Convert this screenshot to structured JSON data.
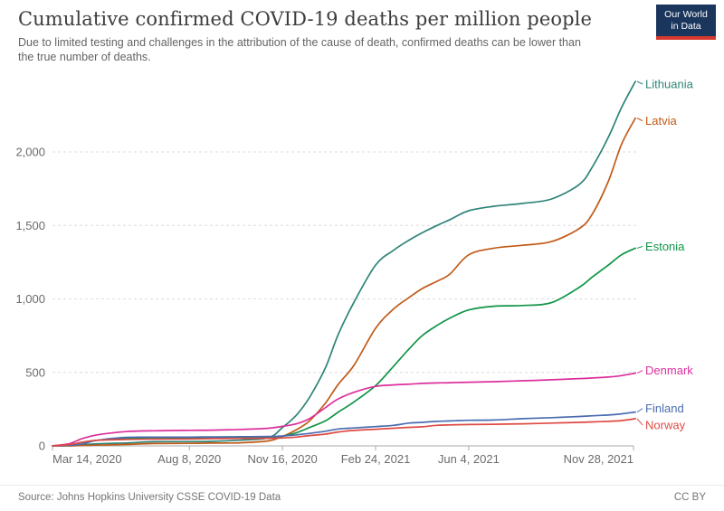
{
  "header": {
    "title": "Cumulative confirmed COVID-19 deaths per million people",
    "subtitle_lines": [
      "Due to limited testing and challenges in the attribution of the cause of death, confirmed deaths can be lower than",
      "the true number of deaths."
    ],
    "logo": {
      "line1": "Our World",
      "line2": "in Data"
    }
  },
  "footer": {
    "source": "Source: Johns Hopkins University CSSE COVID-19 Data",
    "license": "CC BY"
  },
  "chart_data": {
    "type": "line",
    "title": "Cumulative confirmed COVID-19 deaths per million people",
    "xlabel": "",
    "ylabel": "",
    "grid": true,
    "legend_position": "right-end-labels",
    "x_type": "date",
    "x_range": [
      "2020-03-14",
      "2021-11-30"
    ],
    "ylim": [
      0,
      2500
    ],
    "dates": [
      "2020-03-14",
      "2020-04-01",
      "2020-04-15",
      "2020-05-01",
      "2020-06-01",
      "2020-07-01",
      "2020-08-08",
      "2020-09-01",
      "2020-10-01",
      "2020-11-01",
      "2020-11-16",
      "2020-12-01",
      "2020-12-15",
      "2021-01-01",
      "2021-01-15",
      "2021-02-01",
      "2021-02-24",
      "2021-03-15",
      "2021-04-01",
      "2021-04-15",
      "2021-05-01",
      "2021-05-15",
      "2021-06-04",
      "2021-07-01",
      "2021-08-01",
      "2021-09-01",
      "2021-10-01",
      "2021-10-15",
      "2021-11-01",
      "2021-11-15",
      "2021-11-30"
    ],
    "series": [
      {
        "name": "Lithuania",
        "color": "#2e8478",
        "label_dy": 3,
        "values": [
          0,
          3,
          9,
          14,
          20,
          28,
          29,
          31,
          39,
          55,
          125,
          210,
          330,
          530,
          760,
          980,
          1230,
          1330,
          1400,
          1450,
          1500,
          1540,
          1600,
          1630,
          1650,
          1680,
          1780,
          1900,
          2100,
          2300,
          2480
        ]
      },
      {
        "name": "Latvia",
        "color": "#c05a18",
        "label_dy": 3,
        "values": [
          0,
          0,
          3,
          5,
          10,
          16,
          17,
          19,
          21,
          34,
          64,
          110,
          170,
          290,
          420,
          550,
          800,
          930,
          1010,
          1070,
          1120,
          1170,
          1300,
          1345,
          1365,
          1390,
          1480,
          1580,
          1800,
          2050,
          2230
        ]
      },
      {
        "name": "Estonia",
        "color": "#109447",
        "label_dy": -2,
        "values": [
          0,
          9,
          24,
          38,
          50,
          52,
          52,
          53,
          55,
          59,
          66,
          90,
          125,
          170,
          230,
          300,
          410,
          540,
          660,
          750,
          820,
          870,
          925,
          950,
          955,
          975,
          1080,
          1150,
          1230,
          1300,
          1345
        ]
      },
      {
        "name": "Denmark",
        "color": "#dc2f9b",
        "label_dy": -3,
        "values": [
          1,
          15,
          50,
          75,
          97,
          103,
          106,
          107,
          112,
          120,
          133,
          150,
          185,
          260,
          320,
          365,
          405,
          415,
          420,
          425,
          428,
          430,
          433,
          437,
          443,
          450,
          458,
          462,
          468,
          478,
          495
        ]
      },
      {
        "name": "Finland",
        "color": "#4a6cb0",
        "label_dy": -4,
        "values": [
          0,
          3,
          13,
          38,
          58,
          59,
          60,
          61,
          62,
          64,
          67,
          75,
          85,
          100,
          115,
          122,
          131,
          140,
          155,
          160,
          167,
          170,
          174,
          176,
          185,
          192,
          200,
          205,
          210,
          218,
          230
        ]
      },
      {
        "name": "Norway",
        "color": "#df4a44",
        "label_dy": 7,
        "values": [
          0,
          9,
          25,
          38,
          44,
          46,
          47,
          49,
          51,
          52,
          54,
          60,
          70,
          80,
          95,
          105,
          113,
          120,
          126,
          130,
          140,
          143,
          145,
          147,
          150,
          155,
          160,
          163,
          167,
          172,
          185
        ]
      }
    ],
    "xticks": [
      {
        "date": "2020-03-14",
        "label": "Mar 14, 2020",
        "align": "start"
      },
      {
        "date": "2020-08-08",
        "label": "Aug 8, 2020",
        "align": "middle"
      },
      {
        "date": "2020-11-16",
        "label": "Nov 16, 2020",
        "align": "middle"
      },
      {
        "date": "2021-02-24",
        "label": "Feb 24, 2021",
        "align": "middle"
      },
      {
        "date": "2021-06-04",
        "label": "Jun 4, 2021",
        "align": "middle"
      },
      {
        "date": "2021-11-28",
        "label": "Nov 28, 2021",
        "align": "end"
      }
    ],
    "yticks": [
      {
        "value": 0,
        "label": "0"
      },
      {
        "value": 500,
        "label": "500"
      },
      {
        "value": 1000,
        "label": "1,000"
      },
      {
        "value": 1500,
        "label": "1,500"
      },
      {
        "value": 2000,
        "label": "2,000"
      }
    ]
  },
  "style": {
    "grid_color": "#dcdcdc",
    "axis_color": "#a8a8a8",
    "tick_label_color": "#6b6b6b",
    "logo_bg": "#1b365d",
    "logo_stripe": "#d8392e"
  }
}
